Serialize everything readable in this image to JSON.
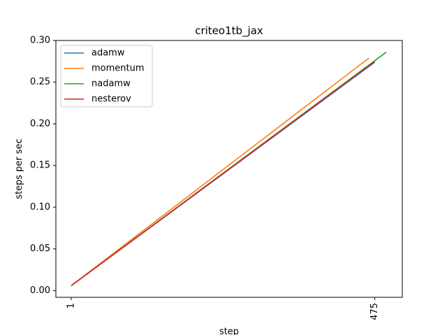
{
  "chart_data": {
    "type": "line",
    "title": "criteo1tb_jax",
    "xlabel": "step",
    "ylabel": "steps per sec",
    "xlim": [
      -23,
      518
    ],
    "ylim": [
      -0.008,
      0.3
    ],
    "xticks": [
      1,
      475
    ],
    "xtick_labels": [
      "1",
      "475"
    ],
    "yticks": [
      0.0,
      0.05,
      0.1,
      0.15,
      0.2,
      0.25,
      0.3
    ],
    "ytick_labels": [
      "0.00",
      "0.05",
      "0.10",
      "0.15",
      "0.20",
      "0.25",
      "0.30"
    ],
    "grid": false,
    "legend_position": "top-left",
    "series": [
      {
        "name": "adamw",
        "color": "#1f77b4",
        "x": [
          1,
          475
        ],
        "y": [
          0.006,
          0.274
        ]
      },
      {
        "name": "momentum",
        "color": "#ff7f0e",
        "x": [
          1,
          466
        ],
        "y": [
          0.006,
          0.279
        ]
      },
      {
        "name": "nadamw",
        "color": "#2ca02c",
        "x": [
          1,
          493
        ],
        "y": [
          0.006,
          0.286
        ]
      },
      {
        "name": "nesterov",
        "color": "#d62728",
        "x": [
          1,
          475
        ],
        "y": [
          0.006,
          0.275
        ]
      }
    ]
  }
}
